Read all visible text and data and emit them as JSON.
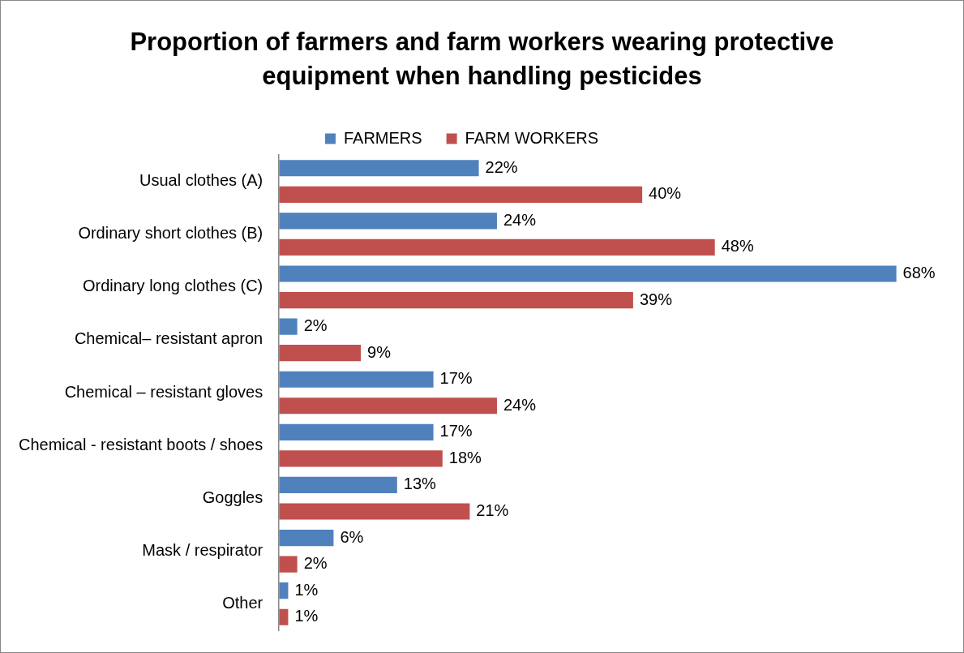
{
  "chart_data": {
    "type": "bar",
    "orientation": "horizontal",
    "title": "Proportion of farmers and farm workers wearing protective equipment when handling pesticides",
    "legend": "top",
    "categories": [
      "Usual clothes (A)",
      "Ordinary short clothes (B)",
      "Ordinary long clothes (C)",
      "Chemical– resistant apron",
      "Chemical – resistant gloves",
      "Chemical - resistant boots / shoes",
      "Goggles",
      "Mask / respirator",
      "Other"
    ],
    "series": [
      {
        "name": "FARMERS",
        "color": "#4f81bd",
        "values": [
          22,
          24,
          68,
          2,
          17,
          17,
          13,
          6,
          1
        ],
        "value_labels": [
          "22%",
          "24%",
          "68%",
          "2%",
          "17%",
          "17%",
          "13%",
          "6%",
          "1%"
        ]
      },
      {
        "name": "FARM WORKERS",
        "color": "#c0504d",
        "values": [
          40,
          48,
          39,
          9,
          24,
          18,
          21,
          2,
          1
        ],
        "value_labels": [
          "40%",
          "48%",
          "39%",
          "9%",
          "24%",
          "18%",
          "21%",
          "2%",
          "1%"
        ]
      }
    ]
  }
}
